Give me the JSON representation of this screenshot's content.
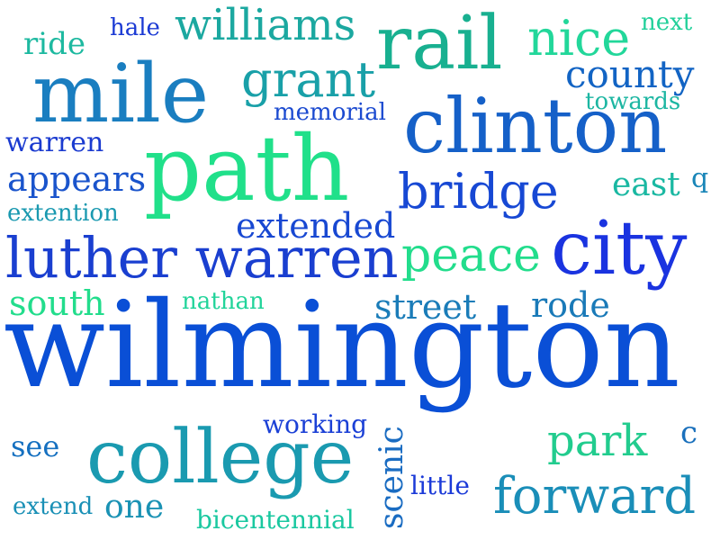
{
  "words": [
    {
      "text": "wilmington",
      "color": "#0a4fd6"
    },
    {
      "text": "path",
      "color": "#20e08a"
    },
    {
      "text": "mile",
      "color": "#1a7ec0"
    },
    {
      "text": "clinton",
      "color": "#1560c8"
    },
    {
      "text": "rail",
      "color": "#18b090"
    },
    {
      "text": "city",
      "color": "#1a33e0"
    },
    {
      "text": "college",
      "color": "#1a9ab0"
    },
    {
      "text": "luther warren",
      "color": "#1a3fd0"
    },
    {
      "text": "williams",
      "color": "#1ba8a0"
    },
    {
      "text": "bridge",
      "color": "#1748d4"
    },
    {
      "text": "forward",
      "color": "#1a8eb8"
    },
    {
      "text": "nice",
      "color": "#22d79a"
    },
    {
      "text": "county",
      "color": "#1264c4"
    },
    {
      "text": "grant",
      "color": "#19a0a8"
    },
    {
      "text": "peace",
      "color": "#22dd8c"
    },
    {
      "text": "park",
      "color": "#22cc8e"
    },
    {
      "text": "extended",
      "color": "#1848d2"
    },
    {
      "text": "appears",
      "color": "#1a54cc"
    },
    {
      "text": "warren",
      "color": "#1b3bd0"
    },
    {
      "text": "street",
      "color": "#1a7cb8"
    },
    {
      "text": "rode",
      "color": "#1a7ab8"
    },
    {
      "text": "south",
      "color": "#22dd8c"
    },
    {
      "text": "east",
      "color": "#1ab8a2"
    },
    {
      "text": "ride",
      "color": "#1db9a0"
    },
    {
      "text": "see",
      "color": "#1570c0"
    },
    {
      "text": "one",
      "color": "#1a92b4"
    },
    {
      "text": "scenic",
      "color": "#1a6cc2"
    },
    {
      "text": "extention",
      "color": "#1a99b0"
    },
    {
      "text": "memorial",
      "color": "#1b4ad0"
    },
    {
      "text": "towards",
      "color": "#1cb6a2"
    },
    {
      "text": "working",
      "color": "#1b40d6"
    },
    {
      "text": "nathan",
      "color": "#22d49a"
    },
    {
      "text": "bicentennial",
      "color": "#1ac8a0"
    },
    {
      "text": "extend",
      "color": "#1a90b6"
    },
    {
      "text": "little",
      "color": "#1b3ad8"
    },
    {
      "text": "hale",
      "color": "#1b3ad4"
    },
    {
      "text": "next",
      "color": "#22d09a"
    },
    {
      "text": "q",
      "color": "#1a86b8"
    },
    {
      "text": "c",
      "color": "#1a70bc"
    }
  ]
}
